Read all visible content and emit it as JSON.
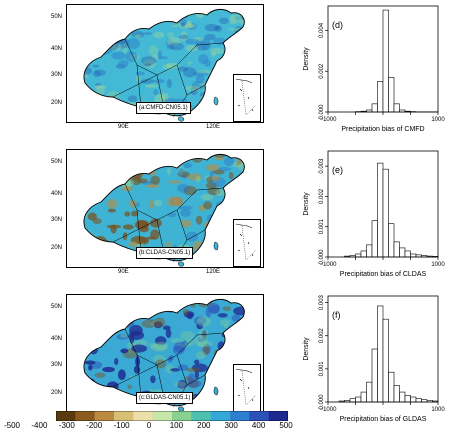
{
  "maps": [
    {
      "label": "(a:CMFD-CN05.1)",
      "lat_ticks": [
        "50N",
        "40N",
        "30N",
        "20N"
      ],
      "lon_ticks": [
        "90E",
        "120E"
      ],
      "dominant": "cmfd"
    },
    {
      "label": "(b:CLDAS-CN05.1)",
      "lat_ticks": [
        "50N",
        "40N",
        "30N",
        "20N"
      ],
      "lon_ticks": [
        "90E",
        "120E"
      ],
      "dominant": "cldas"
    },
    {
      "label": "(c:GLDAS-CN05.1)",
      "lat_ticks": [
        "50N",
        "40N",
        "30N",
        "20N"
      ],
      "lon_ticks": [
        "90E",
        "120E"
      ],
      "dominant": "gldas"
    }
  ],
  "colorbar": {
    "ticks": [
      "-500",
      "-400",
      "-300",
      "-200",
      "-100",
      "0",
      "100",
      "200",
      "300",
      "400",
      "500"
    ],
    "colors": [
      "#5b3a10",
      "#8a5a1e",
      "#b98a3f",
      "#d9bf74",
      "#eadfa6",
      "#c8e6a8",
      "#88d190",
      "#4fbfb0",
      "#35a8d8",
      "#2f7fd0",
      "#2b52b8",
      "#1f2a8f"
    ]
  },
  "chart_data": [
    {
      "type": "bar",
      "panel": "(d)",
      "xlabel": "Precipitation bias of CMFD",
      "ylabel": "Density",
      "xlim": [
        -1000,
        1000
      ],
      "ylim": [
        0,
        0.0052
      ],
      "x_ticks": [
        -1000,
        -500,
        0,
        500,
        1000
      ],
      "x_tick_labels": [
        "−1000",
        "",
        "",
        "",
        "1000"
      ],
      "y_ticks": [
        0,
        0.002,
        0.004
      ],
      "y_tick_labels": [
        "0.000",
        "0.002",
        "0.004"
      ],
      "bin_edges": [
        -500,
        -400,
        -300,
        -200,
        -100,
        0,
        100,
        200,
        300,
        400,
        500,
        600,
        700,
        800,
        900,
        1000
      ],
      "values": [
        2e-05,
        4e-05,
        0.0001,
        0.0004,
        0.0015,
        0.005,
        0.0017,
        0.0004,
        0.0001,
        4e-05,
        2e-05,
        1e-05,
        1e-05,
        1e-05,
        1e-05
      ]
    },
    {
      "type": "bar",
      "panel": "(e)",
      "xlabel": "Precipitation bias of CLDAS",
      "ylabel": "Density",
      "xlim": [
        -1000,
        1000
      ],
      "ylim": [
        0,
        0.0035
      ],
      "x_ticks": [
        -1000,
        -500,
        0,
        500,
        1000
      ],
      "x_tick_labels": [
        "−1000",
        "",
        "",
        "",
        "1000"
      ],
      "y_ticks": [
        0,
        0.001,
        0.002,
        0.003
      ],
      "y_tick_labels": [
        "0.000",
        "0.001",
        "0.002",
        "0.003"
      ],
      "bin_edges": [
        -700,
        -600,
        -500,
        -400,
        -300,
        -200,
        -100,
        0,
        100,
        200,
        300,
        400,
        500,
        600,
        700,
        800,
        900,
        1000
      ],
      "values": [
        3e-05,
        5e-05,
        0.0001,
        0.0002,
        0.0004,
        0.0012,
        0.0031,
        0.0029,
        0.0011,
        0.0005,
        0.0003,
        0.0002,
        0.0001,
        7e-05,
        5e-05,
        3e-05,
        2e-05
      ]
    },
    {
      "type": "bar",
      "panel": "(f)",
      "xlabel": "Precipitation bias of GLDAS",
      "ylabel": "Density",
      "xlim": [
        -1000,
        1000
      ],
      "ylim": [
        0,
        0.0032
      ],
      "x_ticks": [
        -1000,
        -500,
        0,
        500,
        1000
      ],
      "x_tick_labels": [
        "−1000",
        "",
        "",
        "",
        "1000"
      ],
      "y_ticks": [
        0,
        0.001,
        0.002,
        0.003
      ],
      "y_tick_labels": [
        "0.000",
        "0.001",
        "0.002",
        "0.003"
      ],
      "bin_edges": [
        -800,
        -700,
        -600,
        -500,
        -400,
        -300,
        -200,
        -100,
        0,
        100,
        200,
        300,
        400,
        500,
        600,
        700,
        800,
        900,
        1000
      ],
      "values": [
        3e-05,
        5e-05,
        0.0001,
        0.00015,
        0.0003,
        0.0006,
        0.0016,
        0.0029,
        0.0025,
        0.0009,
        0.0005,
        0.0003,
        0.0002,
        0.00015,
        0.0001,
        7e-05,
        5e-05,
        3e-05
      ]
    }
  ]
}
